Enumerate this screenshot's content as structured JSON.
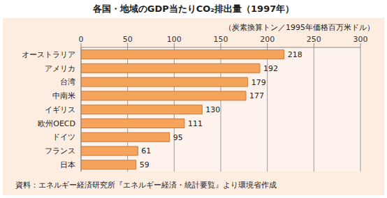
{
  "chart_data": {
    "type": "bar",
    "title": "各国・地域のGDP当たりCO₂排出量（1997年）",
    "xlabel": "（炭素換算トン／1995年価格百万米ドル）",
    "annotations": [
      "資料：エネルギー経済研究所『エネルギー経済・統計要覧』より環境省作成"
    ],
    "categories": [
      "オーストラリア",
      "アメリカ",
      "台湾",
      "中南米",
      "イギリス",
      "欧州OECD",
      "ドイツ",
      "フランス",
      "日本"
    ],
    "values": [
      218,
      192,
      179,
      177,
      130,
      111,
      95,
      61,
      59
    ],
    "color": "#f6a45c",
    "orientation": "horizontal",
    "xlim": [
      0,
      300
    ],
    "xticks": [
      0,
      50,
      100,
      150,
      200,
      250,
      300
    ],
    "grid": true,
    "data_labels": true
  }
}
